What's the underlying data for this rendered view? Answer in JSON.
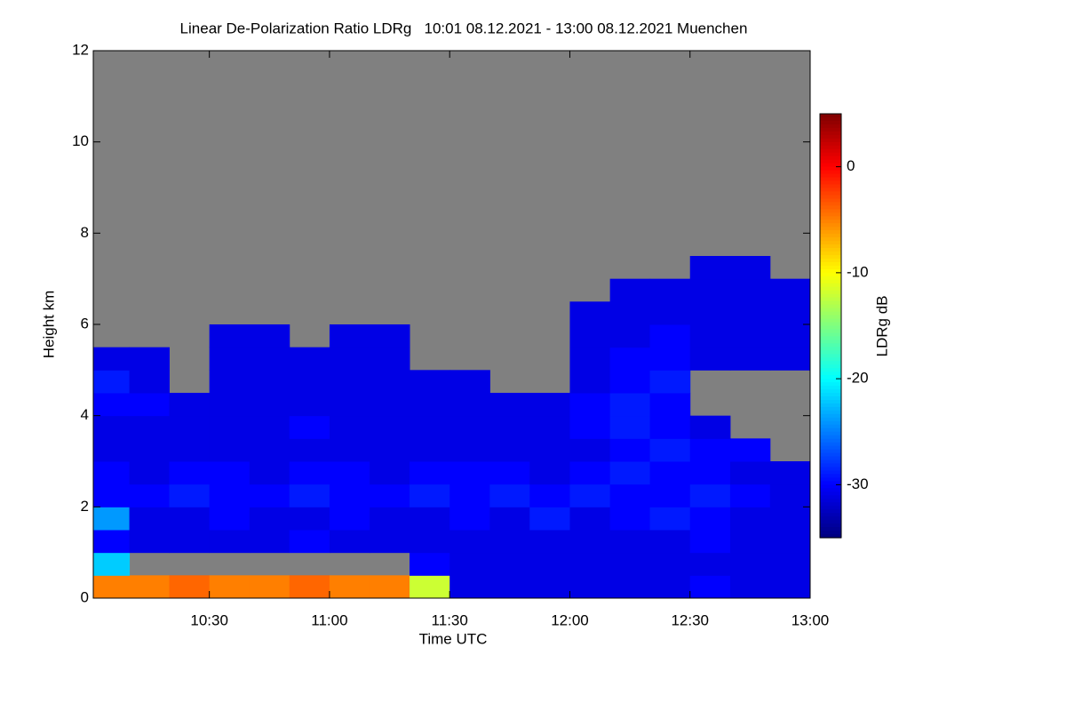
{
  "chart_data": {
    "type": "heatmap",
    "title": "Linear De-Polarization Ratio LDRg   10:01 08.12.2021 - 13:00 08.12.2021 Muenchen",
    "xlabel": "Time UTC",
    "ylabel": "Height km",
    "colorbar_label": "LDRg dB",
    "xlim": [
      10.017,
      13.0
    ],
    "xticks": [
      {
        "value": 10.5,
        "label": "10:30"
      },
      {
        "value": 11,
        "label": "11:00"
      },
      {
        "value": 11.5,
        "label": "11:30"
      },
      {
        "value": 12,
        "label": "12:00"
      },
      {
        "value": 12.5,
        "label": "12:30"
      },
      {
        "value": 13,
        "label": "13:00"
      }
    ],
    "ylim": [
      0,
      12
    ],
    "yticks": [
      0,
      2,
      4,
      6,
      8,
      10,
      12
    ],
    "zlim": [
      -35,
      5
    ],
    "zticks": [
      0,
      -10,
      -20,
      -30
    ],
    "colormap": [
      "#00007f",
      "#0000ff",
      "#007fff",
      "#00ffff",
      "#7fff7f",
      "#ffff00",
      "#ff7f00",
      "#ff0000",
      "#7f0000"
    ],
    "missing_color": "#808080",
    "xbins": [
      10.017,
      10.167,
      10.333,
      10.5,
      10.667,
      10.833,
      11.0,
      11.167,
      11.333,
      11.5,
      11.667,
      11.833,
      12.0,
      12.167,
      12.333,
      12.5,
      12.667,
      12.833,
      13.0
    ],
    "ybins": [
      0,
      0.5,
      1,
      1.5,
      2,
      2.5,
      3,
      3.5,
      4,
      4.5,
      5,
      5.5,
      6,
      6.5,
      7,
      7.5
    ],
    "z": [
      [
        -5,
        -5,
        -4,
        -5,
        -5,
        -4,
        -5,
        -5,
        -12,
        -31,
        -31,
        -31,
        -31,
        -31,
        -31,
        -30,
        -31,
        -31
      ],
      [
        -22,
        null,
        null,
        null,
        null,
        null,
        null,
        null,
        -30,
        -31,
        -31,
        -31,
        -31,
        -31,
        -31,
        -31,
        -31,
        -31
      ],
      [
        -30,
        -31,
        -31,
        -31,
        -31,
        -30,
        -31,
        -31,
        -31,
        -31,
        -31,
        -31,
        -31,
        -31,
        -31,
        -30,
        -31,
        -31
      ],
      [
        -24,
        -31,
        -31,
        -30,
        -31,
        -31,
        -30,
        -31,
        -31,
        -30,
        -31,
        -29,
        -31,
        -30,
        -29,
        -30,
        -31,
        -31
      ],
      [
        -30,
        -30,
        -29,
        -30,
        -30,
        -29,
        -30,
        -30,
        -29,
        -30,
        -29,
        -30,
        -29,
        -30,
        -30,
        -29,
        -30,
        -31
      ],
      [
        -30,
        -31,
        -30,
        -30,
        -31,
        -30,
        -30,
        -31,
        -30,
        -30,
        -30,
        -31,
        -30,
        -29,
        -30,
        -30,
        -31,
        -31
      ],
      [
        -31,
        -31,
        -31,
        -31,
        -31,
        -31,
        -31,
        -31,
        -31,
        -31,
        -31,
        -31,
        -31,
        -30,
        -29,
        -30,
        -30,
        null
      ],
      [
        -31,
        -31,
        -31,
        -31,
        -31,
        -30,
        -31,
        -31,
        -31,
        -31,
        -31,
        -31,
        -30,
        -29,
        -30,
        -31,
        null,
        null
      ],
      [
        -30,
        -30,
        -31,
        -31,
        -31,
        -31,
        -31,
        -31,
        -31,
        -31,
        -31,
        -31,
        -30,
        -29,
        -30,
        null,
        null,
        null
      ],
      [
        -29,
        -31,
        null,
        -31,
        -31,
        -31,
        -31,
        -31,
        -31,
        -31,
        null,
        null,
        -31,
        -30,
        -29,
        null,
        null,
        null
      ],
      [
        -31,
        -31,
        null,
        -31,
        -31,
        -31,
        -31,
        -31,
        null,
        null,
        null,
        null,
        -31,
        -30,
        -30,
        -31,
        -31,
        -31
      ],
      [
        null,
        null,
        null,
        -31,
        -31,
        null,
        -31,
        -31,
        null,
        null,
        null,
        null,
        -31,
        -31,
        -30,
        -31,
        -31,
        -31
      ],
      [
        null,
        null,
        null,
        null,
        null,
        null,
        null,
        null,
        null,
        null,
        null,
        null,
        -31,
        -31,
        -31,
        -31,
        -31,
        -31
      ],
      [
        null,
        null,
        null,
        null,
        null,
        null,
        null,
        null,
        null,
        null,
        null,
        null,
        null,
        -31,
        -31,
        -31,
        -31,
        -31
      ],
      [
        null,
        null,
        null,
        null,
        null,
        null,
        null,
        null,
        null,
        null,
        null,
        null,
        null,
        null,
        null,
        -31,
        -31,
        null
      ]
    ]
  }
}
